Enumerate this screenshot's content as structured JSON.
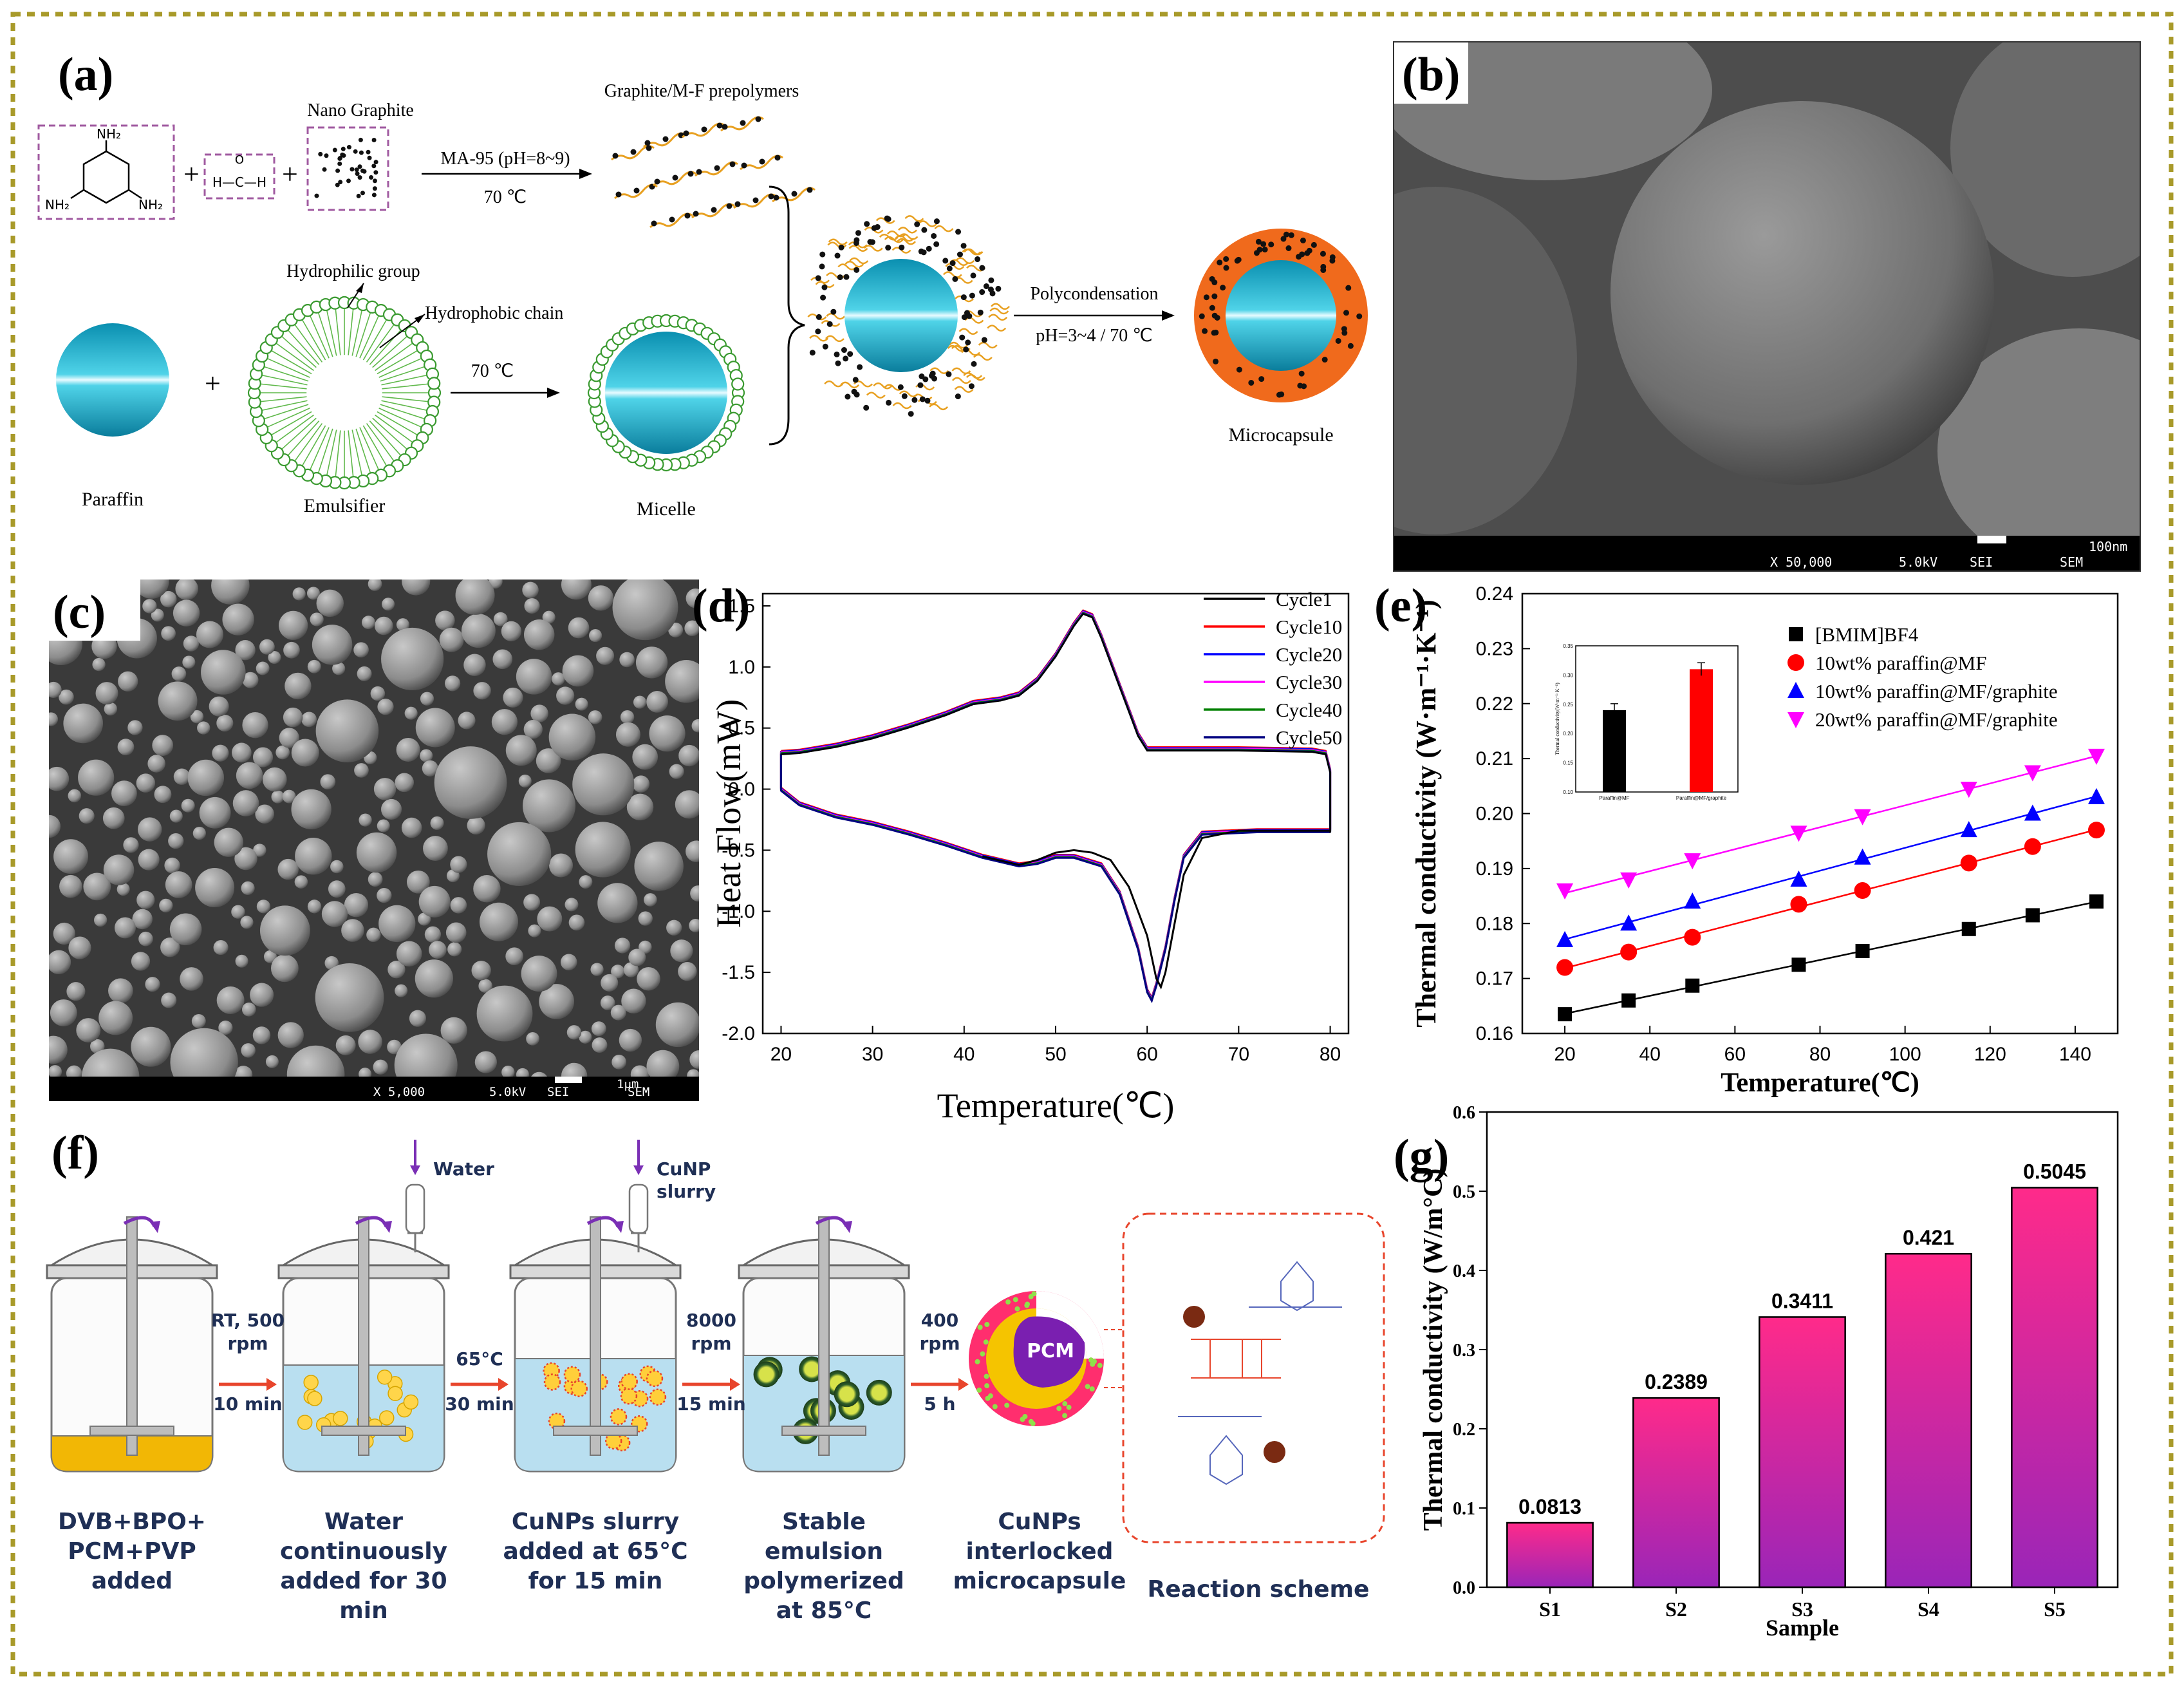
{
  "panel_labels": {
    "a": "(a)",
    "b": "(b)",
    "c": "(c)",
    "d": "(d)",
    "e": "(e)",
    "f": "(f)",
    "g": "(g)"
  },
  "panel_a": {
    "nano_graphite": "Nano Graphite",
    "prepolymers": "Graphite/M-F prepolymers",
    "cond1": "MA-95 (pH=8~9)",
    "temp1": "70 ℃",
    "hydrophilic": "Hydrophilic group",
    "hydrophobic": "Hydrophobic chain",
    "temp2": "70 ℃",
    "polycond": "Polycondensation",
    "cond2": "pH=3~4 / 70 ℃",
    "paraffin": "Paraffin",
    "emulsifier": "Emulsifier",
    "micelle": "Micelle",
    "microcapsule": "Microcapsule",
    "plus": "+",
    "nh2": "NH₂",
    "hcoh": "H—C—H",
    "o": "O"
  },
  "panel_b": {
    "mag": "X 50,000",
    "kv": "5.0kV",
    "sei": "SEI",
    "sem": "SEM",
    "scale": "100nm"
  },
  "panel_c": {
    "mag": "X 5,000",
    "kv": "5.0kV",
    "sei": "SEI",
    "sem": "SEM",
    "scale": "1μm"
  },
  "panel_f": {
    "water": "Water",
    "cunp_slurry_1": "CuNP",
    "cunp_slurry_2": "slurry",
    "step1": [
      "RT, 500",
      "rpm",
      "10 min"
    ],
    "step2": [
      "65°C",
      "30 min"
    ],
    "step3": [
      "8000",
      "rpm",
      "15 min"
    ],
    "step4": [
      "400",
      "rpm",
      "5 h"
    ],
    "cap1": [
      "DVB+BPO+",
      "PCM+PVP",
      "added"
    ],
    "cap2": [
      "Water",
      "continuously",
      "added for 30",
      "min"
    ],
    "cap3": [
      "CuNPs slurry",
      "added at 65°C",
      "for 15 min"
    ],
    "cap4": [
      "Stable",
      "emulsion",
      "polymerized",
      "at 85°C"
    ],
    "cap5": [
      "CuNPs",
      "interlocked",
      "microcapsule"
    ],
    "cap6": "Reaction scheme",
    "pcm": "PCM"
  },
  "chart_data": [
    {
      "id": "d",
      "type": "line",
      "xlabel": "Temperature(℃)",
      "ylabel": "Heat Flow(mW)",
      "xlim": [
        18,
        82
      ],
      "ylim": [
        -2.0,
        1.6
      ],
      "xticks": [
        20,
        30,
        40,
        50,
        60,
        70,
        80
      ],
      "yticks": [
        -2.0,
        -1.5,
        -1.0,
        -0.5,
        0.0,
        0.5,
        1.0,
        1.5
      ],
      "ytick_labels": [
        "-2.0",
        "-1.5",
        "-1.0",
        "-0.5",
        "0.0",
        "0.5",
        "1.0",
        "1.5"
      ],
      "series": [
        {
          "name": "Cycle1",
          "color": "#000000"
        },
        {
          "name": "Cycle10",
          "color": "#ff0000"
        },
        {
          "name": "Cycle20",
          "color": "#0000ff"
        },
        {
          "name": "Cycle30",
          "color": "#ff00ff"
        },
        {
          "name": "Cycle40",
          "color": "#008000"
        },
        {
          "name": "Cycle50",
          "color": "#000080"
        }
      ],
      "heating_curve": [
        [
          20,
          0.3
        ],
        [
          22,
          0.31
        ],
        [
          26,
          0.36
        ],
        [
          30,
          0.43
        ],
        [
          34,
          0.52
        ],
        [
          38,
          0.62
        ],
        [
          41,
          0.71
        ],
        [
          44,
          0.74
        ],
        [
          46,
          0.78
        ],
        [
          48,
          0.9
        ],
        [
          50,
          1.1
        ],
        [
          52,
          1.35
        ],
        [
          53,
          1.45
        ],
        [
          54,
          1.42
        ],
        [
          55,
          1.25
        ],
        [
          56,
          1.05
        ],
        [
          57,
          0.85
        ],
        [
          58,
          0.65
        ],
        [
          59,
          0.45
        ],
        [
          60,
          0.33
        ],
        [
          62,
          0.33
        ],
        [
          70,
          0.33
        ],
        [
          78,
          0.32
        ],
        [
          79.5,
          0.3
        ],
        [
          80,
          0.15
        ],
        [
          80,
          0.0
        ],
        [
          80,
          -0.34
        ]
      ],
      "cooling_curve_main": [
        [
          80,
          -0.34
        ],
        [
          72,
          -0.34
        ],
        [
          66,
          -0.36
        ],
        [
          64,
          -0.55
        ],
        [
          63,
          -0.9
        ],
        [
          62,
          -1.3
        ],
        [
          61,
          -1.6
        ],
        [
          60.5,
          -1.72
        ],
        [
          60,
          -1.65
        ],
        [
          59,
          -1.3
        ],
        [
          57,
          -0.85
        ],
        [
          55,
          -0.62
        ],
        [
          52,
          -0.55
        ],
        [
          50,
          -0.55
        ],
        [
          48,
          -0.6
        ],
        [
          46,
          -0.62
        ],
        [
          42,
          -0.55
        ],
        [
          38,
          -0.45
        ],
        [
          34,
          -0.36
        ],
        [
          30,
          -0.28
        ],
        [
          26,
          -0.22
        ],
        [
          22,
          -0.12
        ],
        [
          20,
          0.0
        ],
        [
          20,
          0.3
        ]
      ],
      "cooling_curve_cycle1": [
        [
          80,
          -0.34
        ],
        [
          70,
          -0.34
        ],
        [
          66,
          -0.4
        ],
        [
          64,
          -0.7
        ],
        [
          63,
          -1.1
        ],
        [
          62,
          -1.5
        ],
        [
          61.5,
          -1.62
        ],
        [
          61,
          -1.55
        ],
        [
          60,
          -1.2
        ],
        [
          58,
          -0.8
        ],
        [
          56,
          -0.58
        ],
        [
          54,
          -0.52
        ],
        [
          52,
          -0.5
        ],
        [
          50,
          -0.52
        ],
        [
          48,
          -0.58
        ],
        [
          46,
          -0.62
        ],
        [
          42,
          -0.55
        ]
      ]
    },
    {
      "id": "e",
      "type": "scatter",
      "xlabel": "Temperature(℃)",
      "ylabel": "Thermal conductivity (W·m⁻¹·K⁻¹)",
      "xlim": [
        10,
        150
      ],
      "ylim": [
        0.16,
        0.24
      ],
      "xticks": [
        20,
        40,
        60,
        80,
        100,
        120,
        140
      ],
      "yticks": [
        0.16,
        0.17,
        0.18,
        0.19,
        0.2,
        0.21,
        0.22,
        0.23,
        0.24
      ],
      "ytick_labels": [
        "0.16",
        "0.17",
        "0.18",
        "0.19",
        "0.20",
        "0.21",
        "0.22",
        "0.23",
        "0.24"
      ],
      "x": [
        20,
        35,
        50,
        75,
        90,
        115,
        130,
        145
      ],
      "series": [
        {
          "name": "[BMIM]BF4",
          "marker": "square",
          "color": "#000000",
          "values": [
            0.1635,
            0.166,
            0.1687,
            0.1725,
            0.175,
            0.179,
            0.1815,
            0.184
          ]
        },
        {
          "name": "10wt% paraffin@MF",
          "marker": "circle",
          "color": "#ff0000",
          "values": [
            0.172,
            0.1748,
            0.1775,
            0.1835,
            0.186,
            0.191,
            0.194,
            0.197
          ]
        },
        {
          "name": "10wt% paraffin@MF/graphite",
          "marker": "triangle-up",
          "color": "#0000ff",
          "values": [
            0.177,
            0.18,
            0.184,
            0.188,
            0.192,
            0.197,
            0.2,
            0.203
          ]
        },
        {
          "name": "20wt% paraffin@MF/graphite",
          "marker": "triangle-down",
          "color": "#ff00ff",
          "values": [
            0.186,
            0.188,
            0.1915,
            0.1965,
            0.1995,
            0.2045,
            0.2075,
            0.2105
          ]
        }
      ],
      "inset": {
        "type": "bar",
        "categories": [
          "Paraffin@MF",
          "Paraffin@MF/graphite"
        ],
        "values": [
          0.24,
          0.31
        ],
        "colors": [
          "#000000",
          "#ff0000"
        ],
        "ylabel": "Thermal conductivity(W·m⁻¹·K⁻¹)",
        "ytick_labels": [
          "0.10",
          "0.15",
          "0.20",
          "0.25",
          "0.30",
          "0.35"
        ]
      }
    },
    {
      "id": "g",
      "type": "bar",
      "xlabel": "Sample",
      "ylabel": "Thermal conductivity (W/m°C)",
      "categories": [
        "S1",
        "S2",
        "S3",
        "S4",
        "S5"
      ],
      "values": [
        0.0813,
        0.2389,
        0.3411,
        0.421,
        0.5045
      ],
      "value_labels": [
        "0.0813",
        "0.2389",
        "0.3411",
        "0.421",
        "0.5045"
      ],
      "ylim": [
        0,
        0.6
      ],
      "yticks": [
        0.0,
        0.1,
        0.2,
        0.3,
        0.4,
        0.5,
        0.6
      ],
      "ytick_labels": [
        "0.0",
        "0.1",
        "0.2",
        "0.3",
        "0.4",
        "0.5",
        "0.6"
      ]
    }
  ]
}
